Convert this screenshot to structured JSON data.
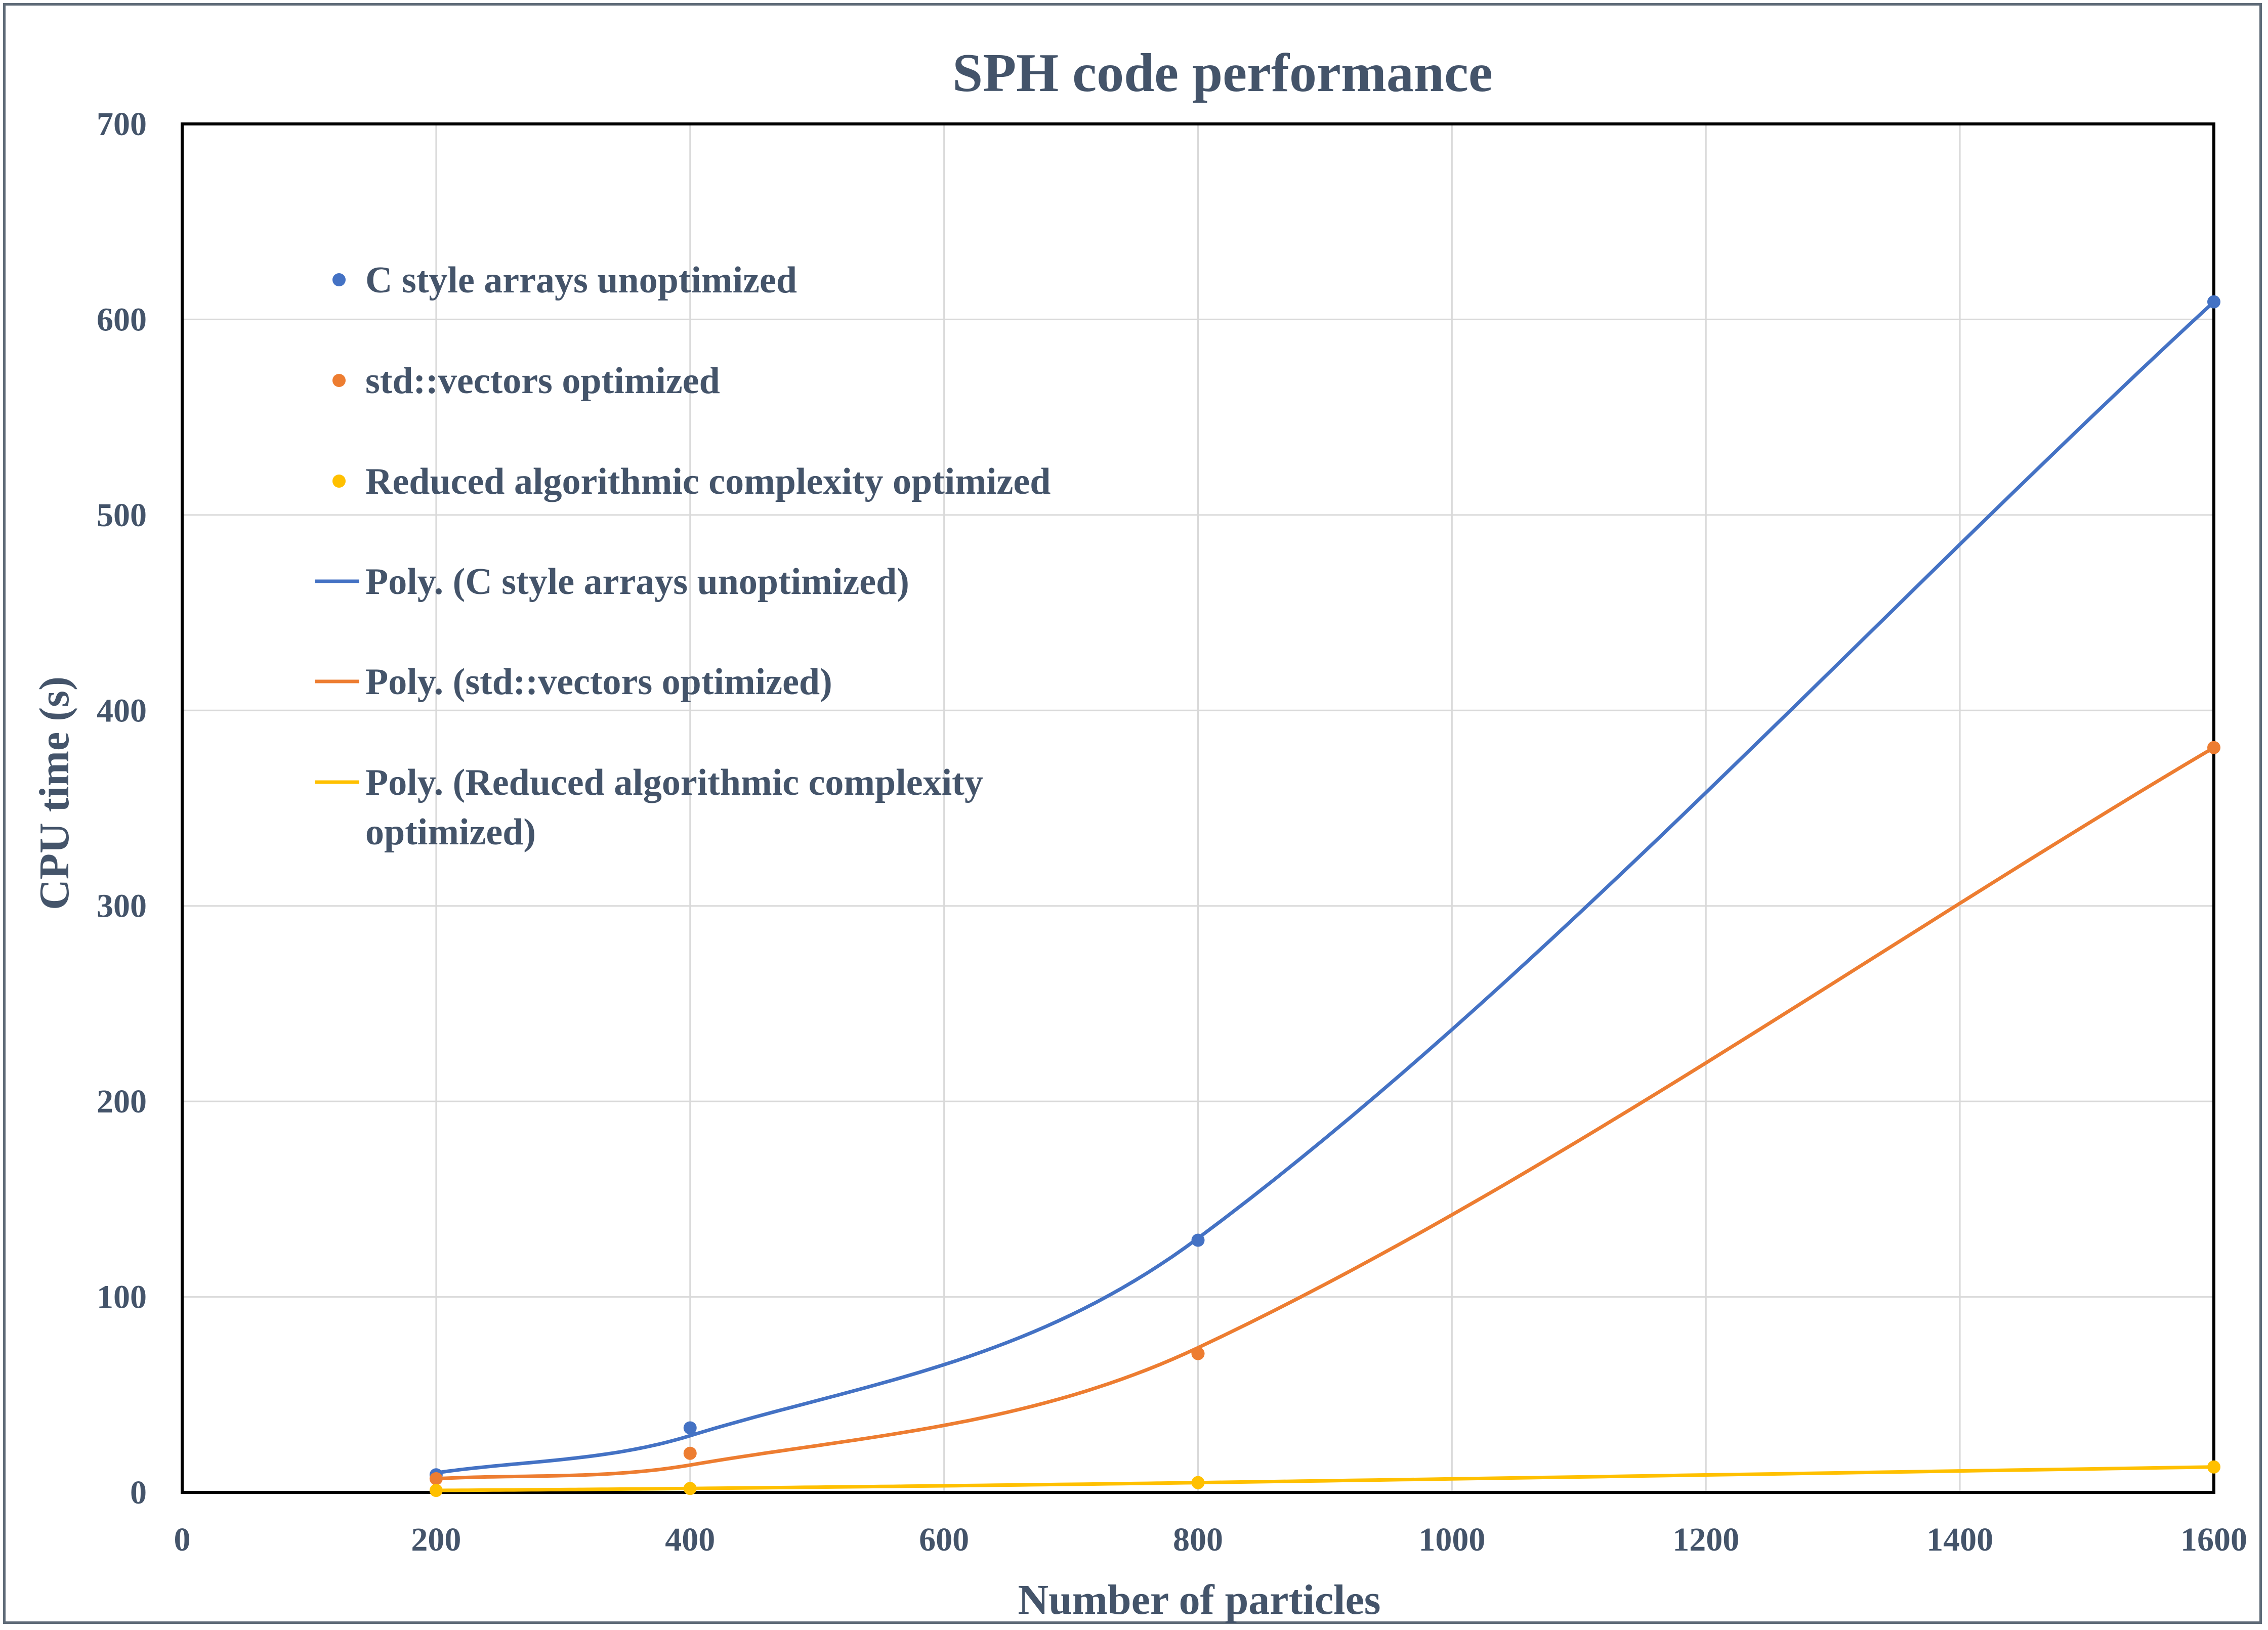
{
  "chart_data": {
    "type": "scatter",
    "title": "SPH code performance",
    "xlabel": "Number of particles",
    "ylabel": "CPU time (s)",
    "xlim": [
      0,
      1600
    ],
    "ylim": [
      0,
      700
    ],
    "xticks": [
      0,
      200,
      400,
      600,
      800,
      1000,
      1200,
      1400,
      1600
    ],
    "yticks": [
      0,
      100,
      200,
      300,
      400,
      500,
      600,
      700
    ],
    "grid": true,
    "legend_position": "top-left",
    "series": [
      {
        "name": "C style arrays unoptimized",
        "kind": "points",
        "color": "#4472c4",
        "x": [
          200,
          400,
          800,
          1600
        ],
        "y": [
          9,
          33,
          129,
          609
        ]
      },
      {
        "name": "std::vectors optimized",
        "kind": "points",
        "color": "#ed7d31",
        "x": [
          200,
          400,
          800,
          1600
        ],
        "y": [
          7,
          20,
          71,
          381
        ]
      },
      {
        "name": "Reduced algorithmic complexity optimized",
        "kind": "points",
        "color": "#ffc000",
        "x": [
          200,
          400,
          800,
          1600
        ],
        "y": [
          1,
          2,
          5,
          13
        ]
      },
      {
        "name": "Poly. (C style arrays unoptimized)",
        "kind": "trend",
        "color": "#4472c4",
        "x": [
          200,
          400,
          800,
          1600
        ],
        "y": [
          10,
          29,
          130,
          609
        ]
      },
      {
        "name": "Poly. (std::vectors optimized)",
        "kind": "trend",
        "color": "#ed7d31",
        "x": [
          200,
          400,
          800,
          1600
        ],
        "y": [
          7,
          14,
          74,
          381
        ]
      },
      {
        "name": "Poly. (Reduced algorithmic complexity optimized)",
        "kind": "trend",
        "color": "#ffc000",
        "x": [
          200,
          400,
          800,
          1600
        ],
        "y": [
          1,
          2,
          5,
          13
        ]
      }
    ]
  },
  "legend": [
    {
      "kind": "marker",
      "color": "#4472c4",
      "lines": [
        "C style arrays unoptimized"
      ]
    },
    {
      "kind": "marker",
      "color": "#ed7d31",
      "lines": [
        "std::vectors optimized"
      ]
    },
    {
      "kind": "marker",
      "color": "#ffc000",
      "lines": [
        "Reduced algorithmic complexity optimized"
      ]
    },
    {
      "kind": "line",
      "color": "#4472c4",
      "lines": [
        "Poly. (C style arrays unoptimized)"
      ]
    },
    {
      "kind": "line",
      "color": "#ed7d31",
      "lines": [
        "Poly. (std::vectors optimized)"
      ]
    },
    {
      "kind": "line",
      "color": "#ffc000",
      "lines": [
        "Poly. (Reduced algorithmic complexity",
        "optimized)"
      ]
    }
  ]
}
